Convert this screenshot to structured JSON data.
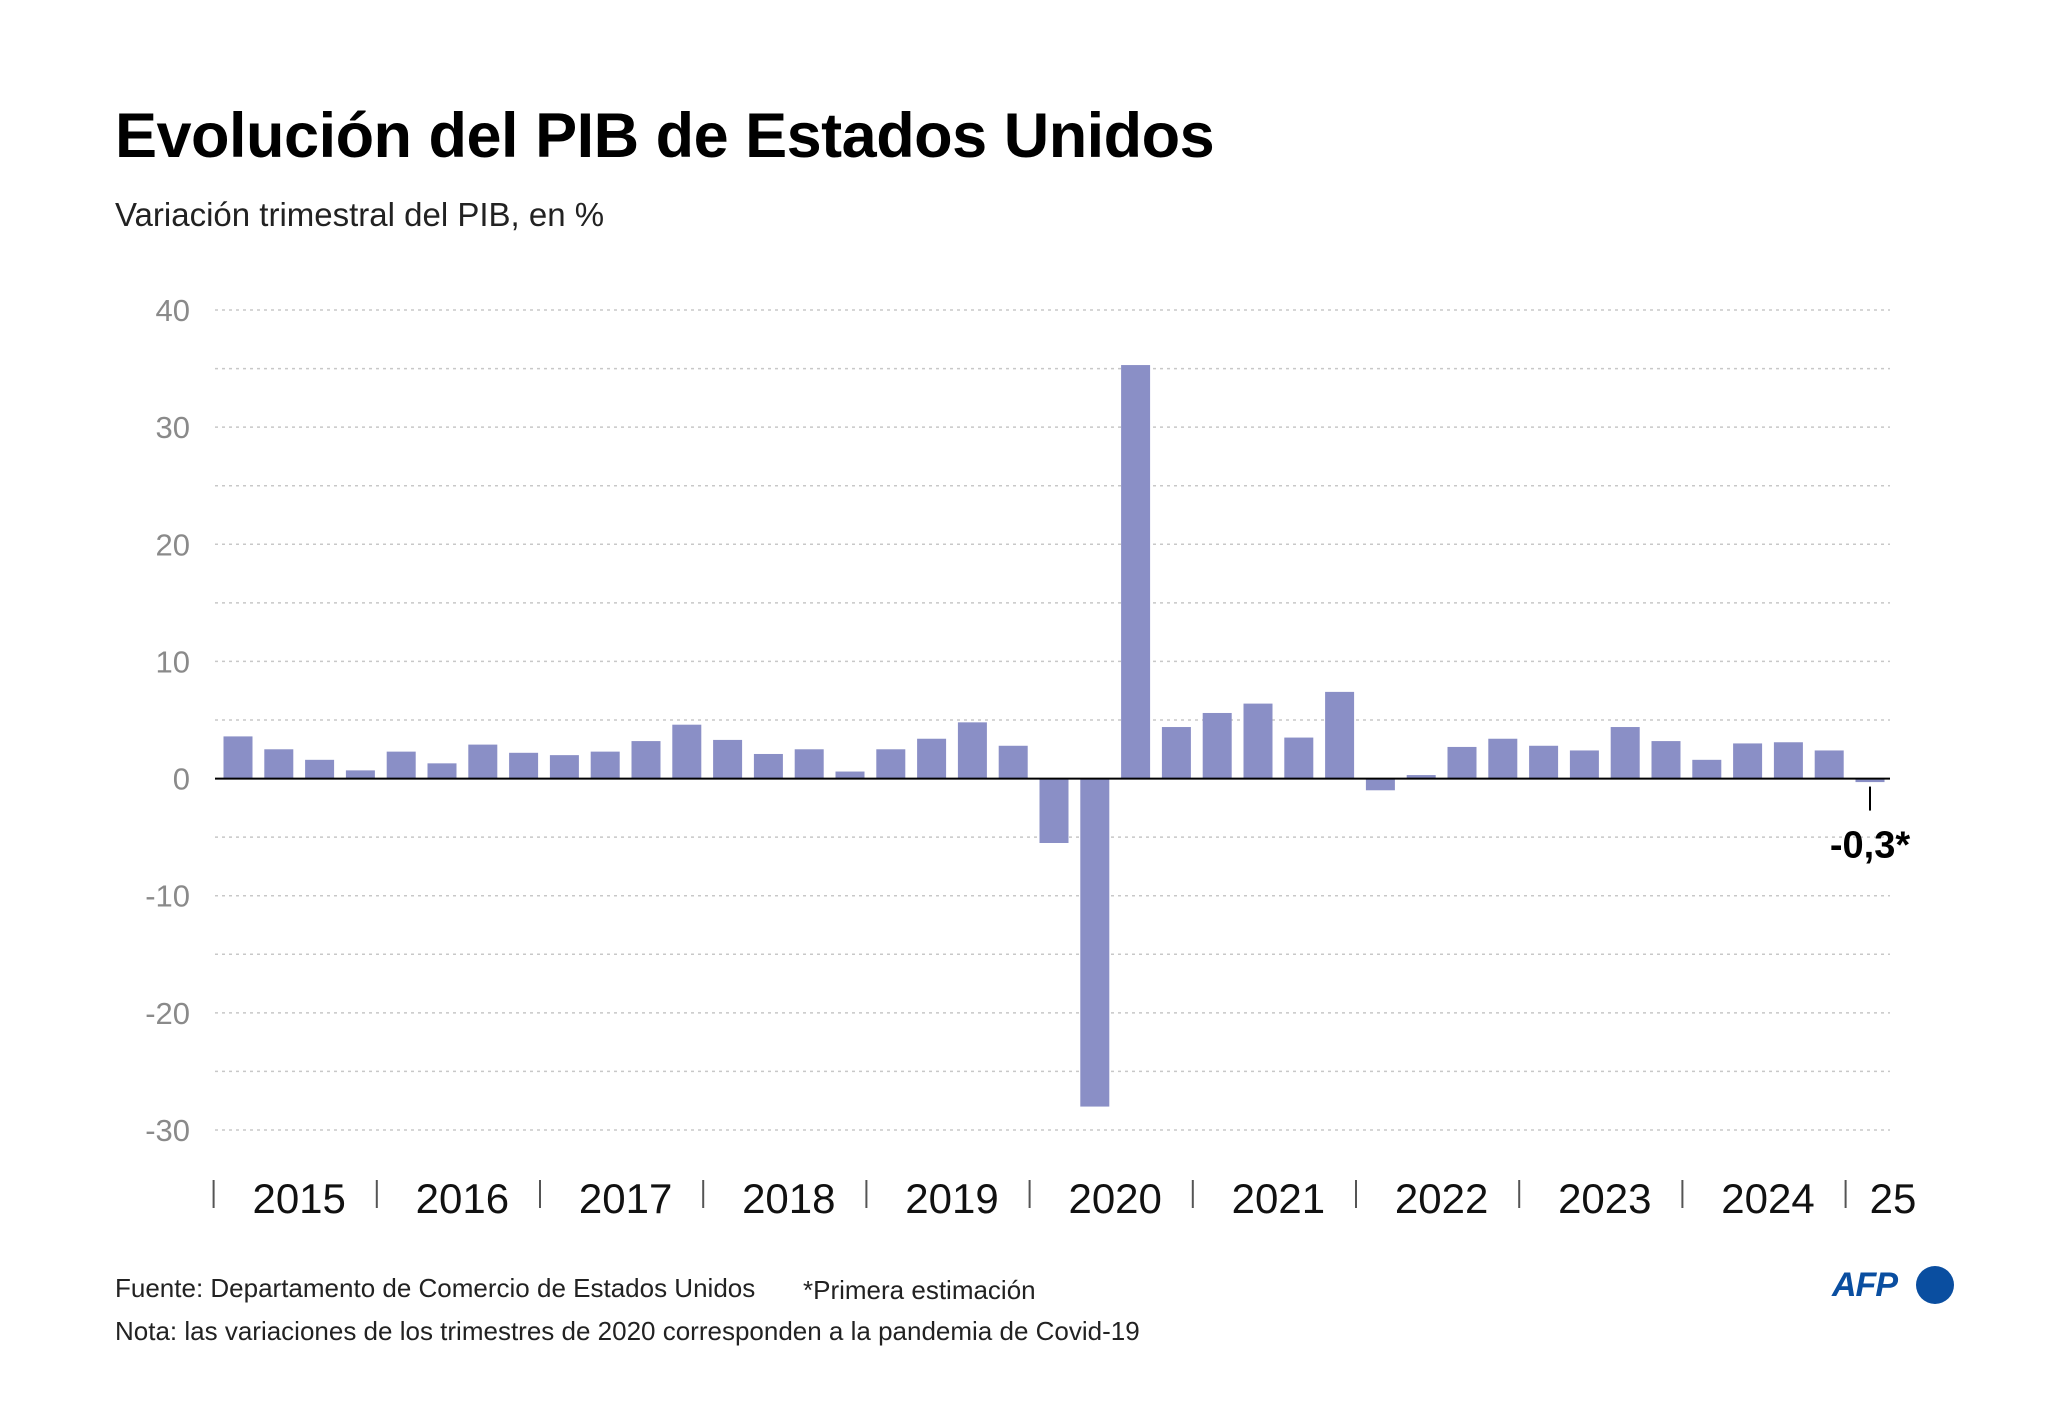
{
  "title": "Evolución del PIB de Estados Unidos",
  "subtitle": "Variación trimestral del PIB, en %",
  "colors": {
    "bar": "#8a8fc6",
    "axis": "#000000",
    "grid": "#c8c8c8",
    "brand": "#0a4ea0"
  },
  "chart_data": {
    "type": "bar",
    "title": "Evolución del PIB de Estados Unidos",
    "ylabel": "Variación trimestral del PIB, en %",
    "xlabel": "",
    "ylim": [
      -30,
      40
    ],
    "yticks": [
      40,
      30,
      20,
      10,
      0,
      -10,
      -20,
      -30
    ],
    "grid": true,
    "year_labels": [
      "2015",
      "2016",
      "2017",
      "2018",
      "2019",
      "2020",
      "2021",
      "2022",
      "2023",
      "2024",
      "25"
    ],
    "quarters": [
      "2015-Q1",
      "2015-Q2",
      "2015-Q3",
      "2015-Q4",
      "2016-Q1",
      "2016-Q2",
      "2016-Q3",
      "2016-Q4",
      "2017-Q1",
      "2017-Q2",
      "2017-Q3",
      "2017-Q4",
      "2018-Q1",
      "2018-Q2",
      "2018-Q3",
      "2018-Q4",
      "2019-Q1",
      "2019-Q2",
      "2019-Q3",
      "2019-Q4",
      "2020-Q1",
      "2020-Q2",
      "2020-Q3",
      "2020-Q4",
      "2021-Q1",
      "2021-Q2",
      "2021-Q3",
      "2021-Q4",
      "2022-Q1",
      "2022-Q2",
      "2022-Q3",
      "2022-Q4",
      "2023-Q1",
      "2023-Q2",
      "2023-Q3",
      "2023-Q4",
      "2024-Q1",
      "2024-Q2",
      "2024-Q3",
      "2024-Q4",
      "2025-Q1"
    ],
    "values": [
      3.6,
      2.5,
      1.6,
      0.7,
      2.3,
      1.3,
      2.9,
      2.2,
      2.0,
      2.3,
      3.2,
      4.6,
      3.3,
      2.1,
      2.5,
      0.6,
      2.5,
      3.4,
      4.8,
      2.8,
      -5.5,
      -28.0,
      35.3,
      4.4,
      5.6,
      6.4,
      3.5,
      7.4,
      -1.0,
      0.3,
      2.7,
      3.4,
      2.8,
      2.4,
      4.4,
      3.2,
      1.6,
      3.0,
      3.1,
      2.4,
      -0.3
    ],
    "annotation": {
      "label": "-0,3*",
      "quarter": "2025-Q1"
    }
  },
  "footer": {
    "source": "Fuente: Departamento de Comercio de Estados Unidos",
    "estimate_note": "*Primera estimación",
    "note": "Nota: las variaciones de los trimestres de 2020 corresponden a la pandemia de Covid-19"
  },
  "logo": {
    "text": "AFP",
    "icon": "afp-logo-icon"
  }
}
